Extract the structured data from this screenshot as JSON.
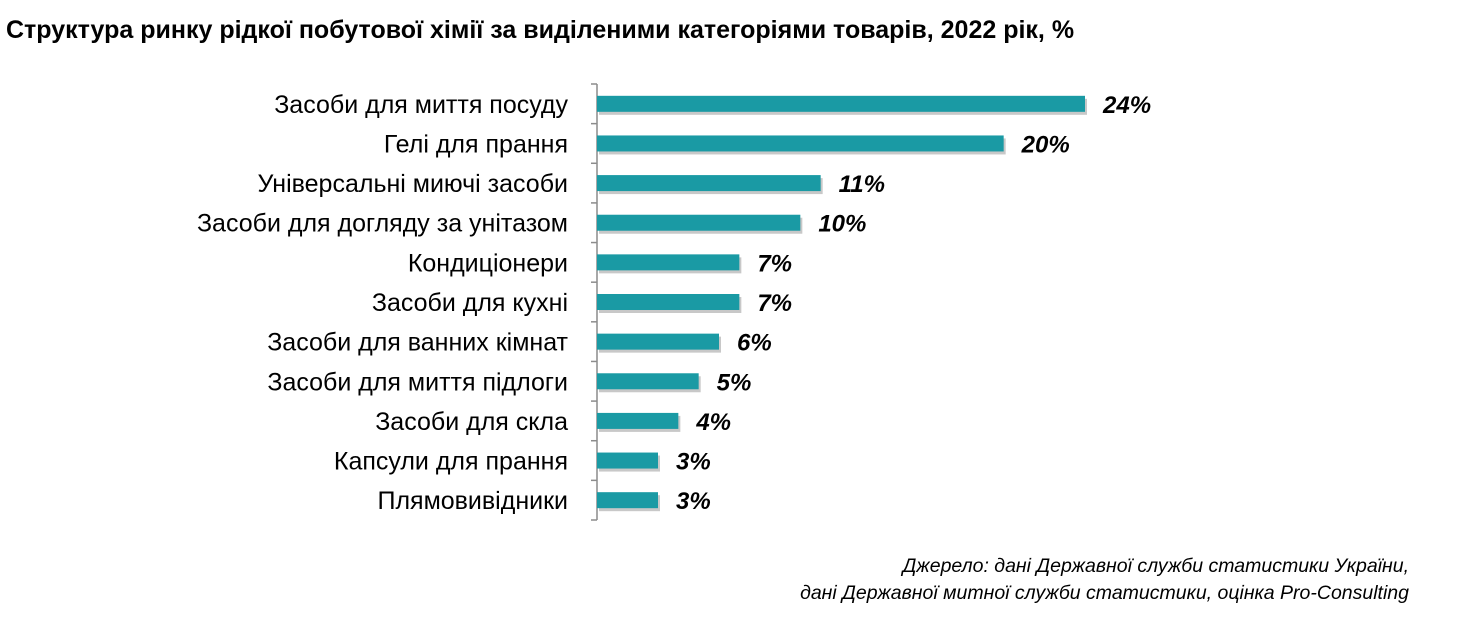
{
  "title": "Структура ринку рідкої побутової хімії за виділеними категоріями товарів, 2022 рік, %",
  "source": {
    "line1": "Джерело: дані Державної служби статистики України,",
    "line2": "дані Державної митної служби статистики, оцінка Pro-Consulting"
  },
  "colors": {
    "bar": "#1a9aa4",
    "bar_shadow": "#9a9a9a",
    "axis": "#8c8c8c"
  },
  "chart_data": {
    "type": "bar",
    "orientation": "horizontal",
    "categories": [
      "Засоби для миття посуду",
      "Гелі для прання",
      "Універсальні миючі засоби",
      "Засоби для догляду за унітазом",
      "Кондиціонери",
      "Засоби для кухні",
      "Засоби для ванних кімнат",
      "Засоби для миття підлоги",
      "Засоби для скла",
      "Капсули для прання",
      "Плямовивідники"
    ],
    "values": [
      24,
      20,
      11,
      10,
      7,
      7,
      6,
      5,
      4,
      3,
      3
    ],
    "value_labels": [
      "24%",
      "20%",
      "11%",
      "10%",
      "7%",
      "7%",
      "6%",
      "5%",
      "4%",
      "3%",
      "3%"
    ],
    "title": "Структура ринку рідкої побутової хімії за виділеними категоріями товарів, 2022 рік, %",
    "xlabel": "",
    "ylabel": "",
    "xlim": [
      0,
      24
    ],
    "grid": false,
    "legend": "none"
  }
}
